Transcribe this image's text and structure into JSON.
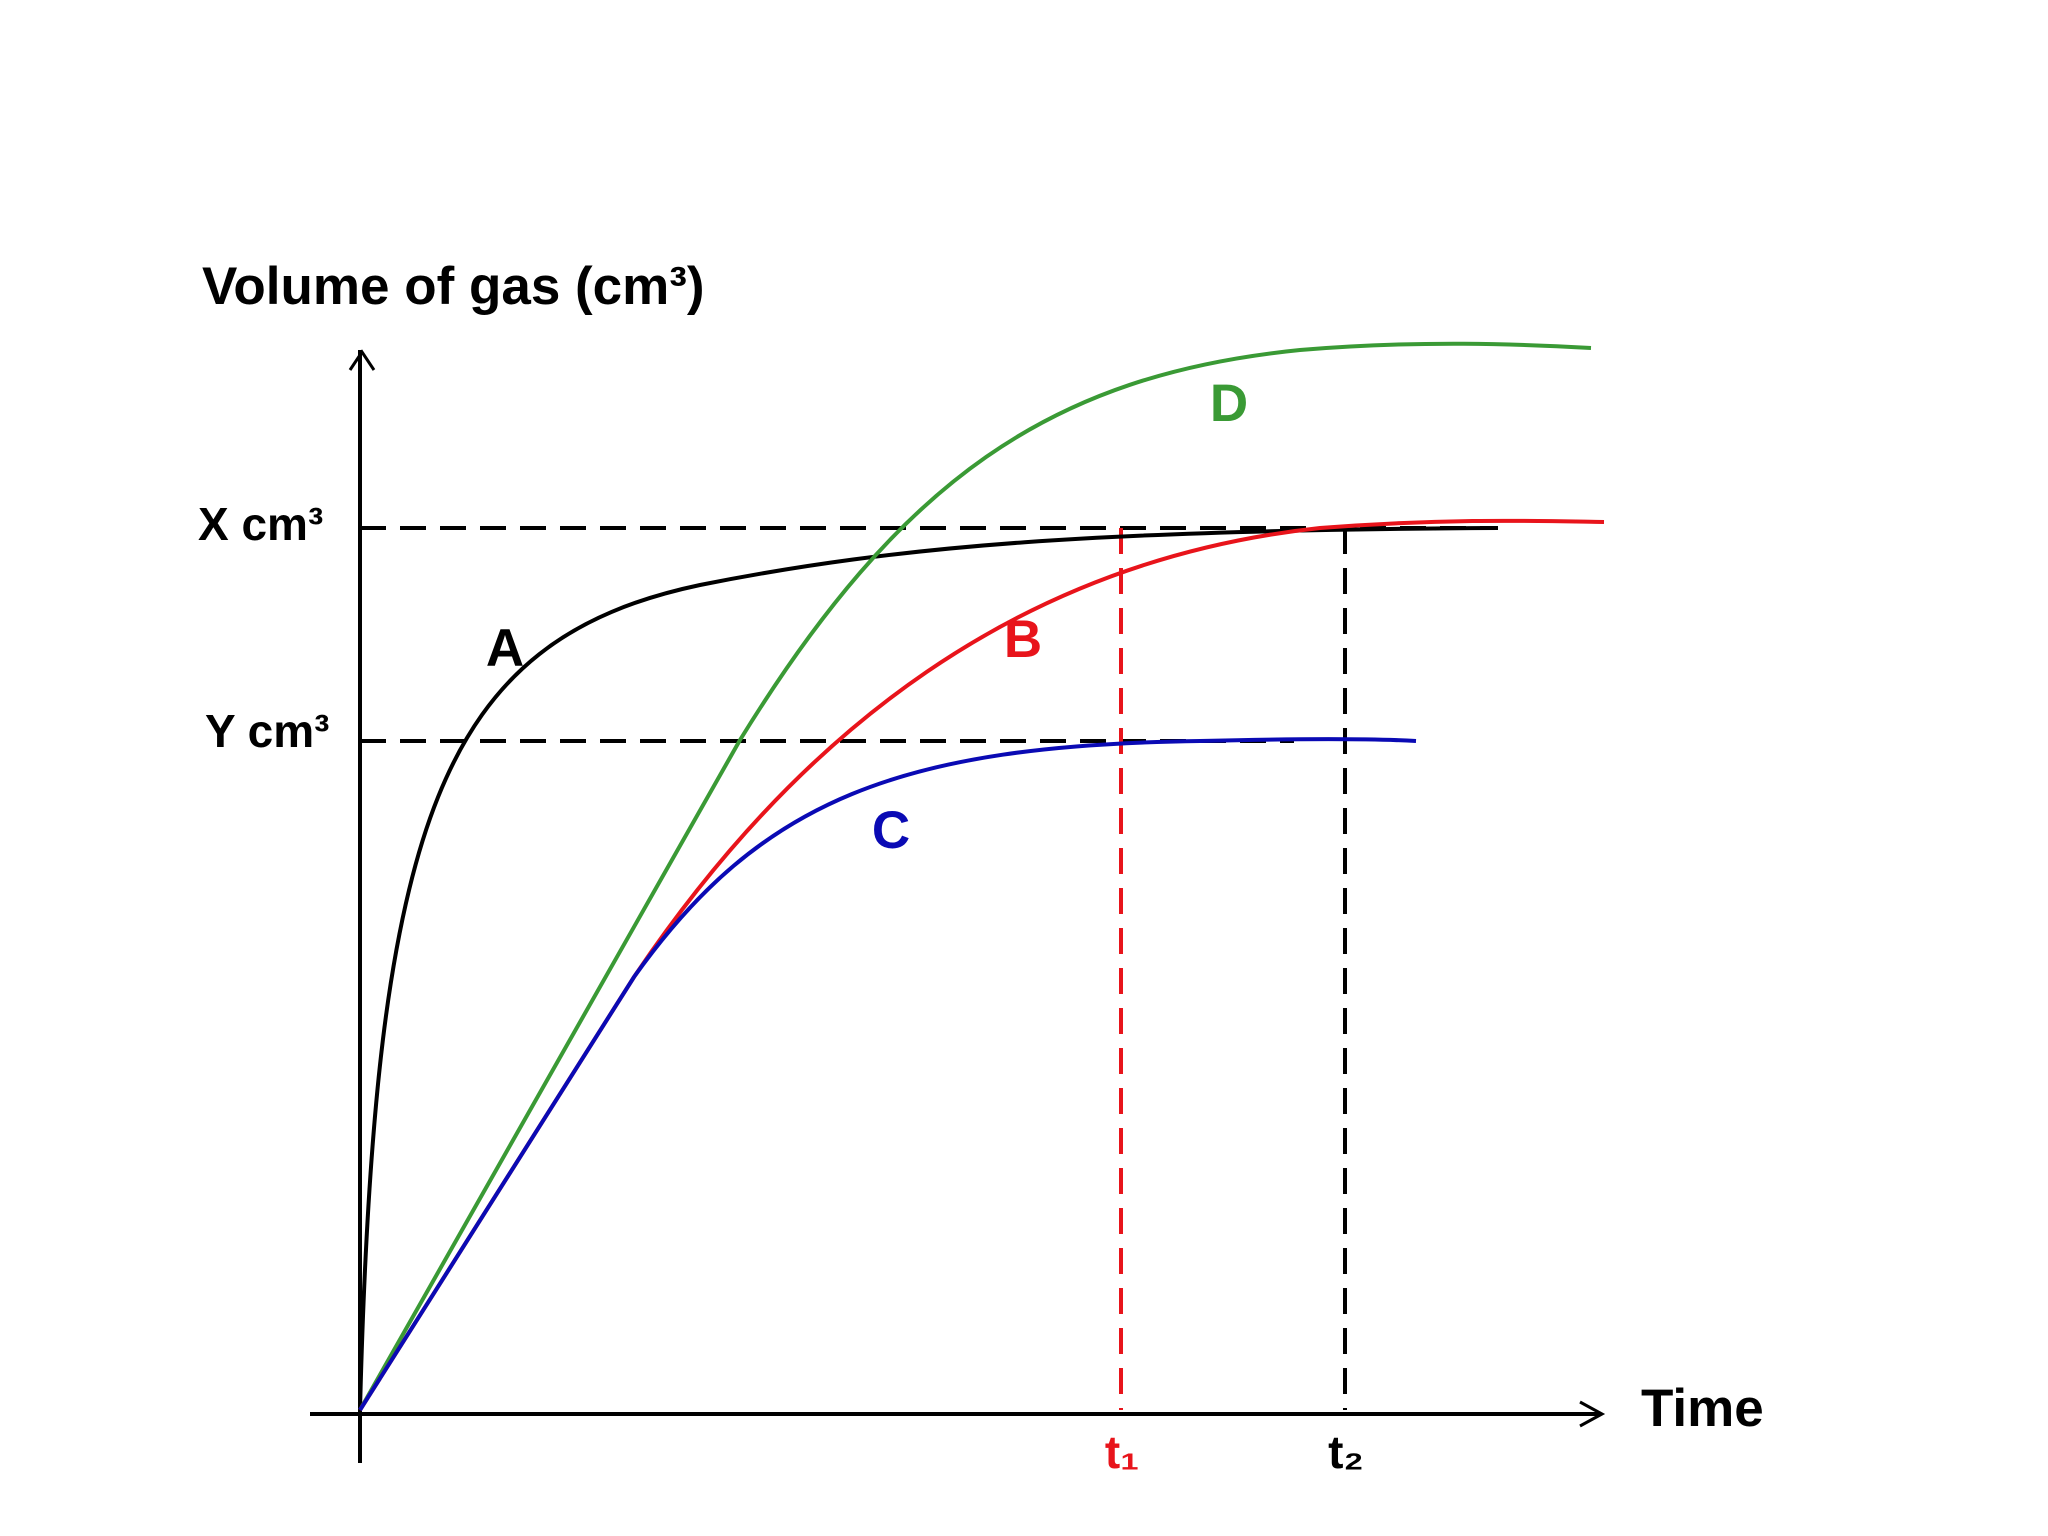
{
  "axes": {
    "y_label": "Volume of gas (cm³)",
    "x_label": "Time",
    "y_levels": [
      "X cm³",
      "Y cm³"
    ],
    "x_markers": [
      "t₁",
      "t₂"
    ]
  },
  "curves": [
    {
      "label": "A",
      "color": "#000000"
    },
    {
      "label": "B",
      "color": "#e8141b"
    },
    {
      "label": "C",
      "color": "#0a0ab4"
    },
    {
      "label": "D",
      "color": "#3a9a35"
    }
  ]
}
